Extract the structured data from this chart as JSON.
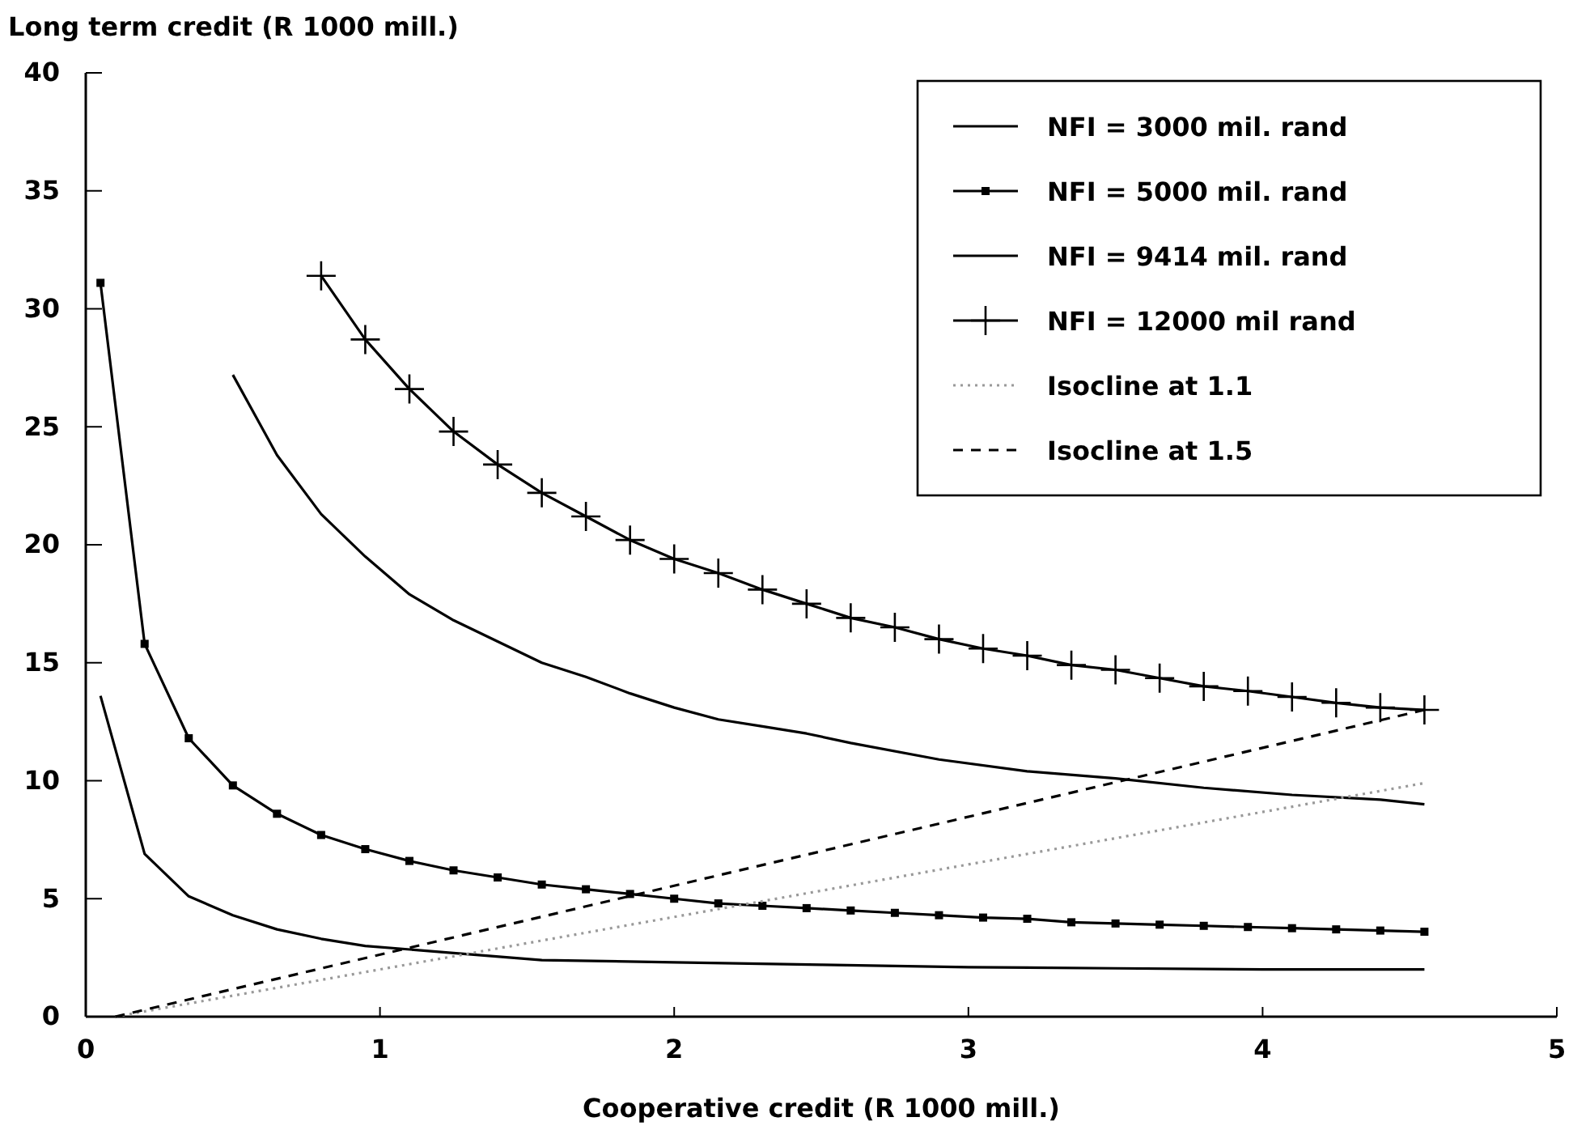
{
  "chart_data": {
    "type": "line",
    "xlabel": "Cooperative credit (R 1000 mill.)",
    "ylabel": "Long term credit (R 1000 mill.)",
    "xlim": [
      0,
      5
    ],
    "xticks": [
      0,
      1,
      2,
      3,
      4,
      5
    ],
    "ylim": [
      0,
      40
    ],
    "yticks": [
      0,
      5,
      10,
      15,
      20,
      25,
      30,
      35,
      40
    ],
    "grid": false,
    "legend": "top right",
    "line_style": "solid",
    "series": [
      {
        "name": "NFI = 3000 mil. rand",
        "color": "#000000",
        "marker": "none",
        "x": [
          0.05,
          0.2,
          0.35,
          0.5,
          0.65,
          0.8,
          0.95,
          1.25,
          1.55,
          2.0,
          2.5,
          3.0,
          3.5,
          4.0,
          4.55
        ],
        "values": [
          13.6,
          6.9,
          5.1,
          4.3,
          3.7,
          3.3,
          3.0,
          2.7,
          2.4,
          2.3,
          2.2,
          2.1,
          2.05,
          2.0,
          2.0
        ]
      },
      {
        "name": "NFI = 5000 mil. rand",
        "color": "#000000",
        "marker": "square",
        "x": [
          0.05,
          0.2,
          0.35,
          0.5,
          0.65,
          0.8,
          0.95,
          1.1,
          1.25,
          1.4,
          1.55,
          1.7,
          1.85,
          2.0,
          2.15,
          2.3,
          2.45,
          2.6,
          2.75,
          2.9,
          3.05,
          3.2,
          3.35,
          3.5,
          3.65,
          3.8,
          3.95,
          4.1,
          4.25,
          4.4,
          4.55
        ],
        "values": [
          31.1,
          15.8,
          11.8,
          9.8,
          8.6,
          7.7,
          7.1,
          6.6,
          6.2,
          5.9,
          5.6,
          5.4,
          5.2,
          5.0,
          4.8,
          4.7,
          4.6,
          4.5,
          4.4,
          4.3,
          4.2,
          4.15,
          4.0,
          3.95,
          3.9,
          3.85,
          3.8,
          3.75,
          3.7,
          3.65,
          3.6
        ]
      },
      {
        "name": "NFI = 9414 mil. rand",
        "color": "#000000",
        "marker": "none",
        "x": [
          0.5,
          0.65,
          0.8,
          0.95,
          1.1,
          1.25,
          1.4,
          1.55,
          1.7,
          1.85,
          2.0,
          2.15,
          2.3,
          2.45,
          2.6,
          2.9,
          3.2,
          3.5,
          3.8,
          4.1,
          4.4,
          4.55
        ],
        "values": [
          27.2,
          23.8,
          21.3,
          19.5,
          17.9,
          16.8,
          15.9,
          15.0,
          14.4,
          13.7,
          13.1,
          12.6,
          12.3,
          12.0,
          11.6,
          10.9,
          10.4,
          10.1,
          9.7,
          9.4,
          9.2,
          9.0
        ]
      },
      {
        "name": "NFI = 12000 mil rand",
        "color": "#000000",
        "marker": "cross",
        "x": [
          0.8,
          0.95,
          1.1,
          1.25,
          1.4,
          1.55,
          1.7,
          1.85,
          2.0,
          2.15,
          2.3,
          2.45,
          2.6,
          2.75,
          2.9,
          3.05,
          3.2,
          3.35,
          3.5,
          3.65,
          3.8,
          3.95,
          4.1,
          4.25,
          4.4,
          4.55
        ],
        "values": [
          31.4,
          28.7,
          26.6,
          24.8,
          23.4,
          22.2,
          21.2,
          20.2,
          19.4,
          18.8,
          18.1,
          17.5,
          16.9,
          16.5,
          16.0,
          15.6,
          15.3,
          14.9,
          14.7,
          14.35,
          14.0,
          13.8,
          13.55,
          13.3,
          13.1,
          13.0
        ]
      },
      {
        "name": "Isocline at 1.1",
        "color": "#999999",
        "marker": "none",
        "line_style": "dotted",
        "x": [
          0.1,
          4.55
        ],
        "values": [
          0,
          9.9
        ]
      },
      {
        "name": "Isocline at 1.5",
        "color": "#000000",
        "marker": "none",
        "line_style": "dashed",
        "x": [
          0.1,
          4.55
        ],
        "values": [
          0,
          13.0
        ]
      }
    ]
  }
}
